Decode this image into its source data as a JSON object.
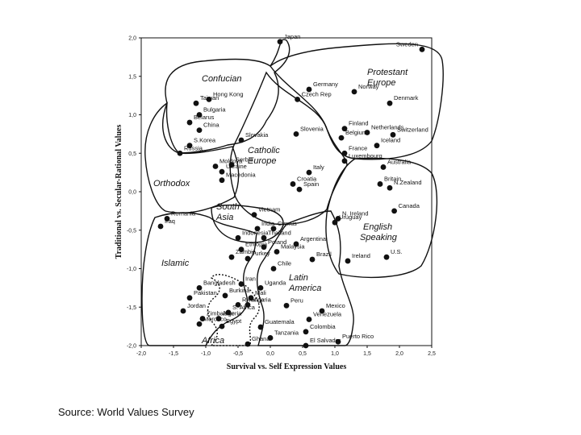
{
  "chart_data": {
    "type": "scatter",
    "xlabel": "Survival vs. Self Expression Values",
    "ylabel": "Traditional vs. Secular-Rational Values",
    "xlim": [
      -2.0,
      2.5
    ],
    "ylim": [
      -2.0,
      2.0
    ],
    "x_ticks": [
      "-2,0",
      "-1,5",
      "-1,0",
      "-0,5",
      "0,0",
      "0,5",
      "1,0",
      "1,5",
      "2,0",
      "2,5"
    ],
    "y_ticks": [
      "2,0",
      "1,5",
      "1,0",
      "0,5",
      "0,0",
      "-0,5",
      "-1,0",
      "-1,5",
      "-2,0"
    ],
    "grid": false,
    "points": [
      {
        "label": "Japan",
        "x": 0.15,
        "y": 1.95
      },
      {
        "label": "Sweden",
        "x": 2.35,
        "y": 1.85
      },
      {
        "label": "Hong Kong",
        "x": -0.95,
        "y": 1.2
      },
      {
        "label": "Taiwan",
        "x": -1.15,
        "y": 1.15
      },
      {
        "label": "Germany",
        "x": 0.6,
        "y": 1.33
      },
      {
        "label": "Norway",
        "x": 1.3,
        "y": 1.3
      },
      {
        "label": "Czech Rep",
        "x": 0.42,
        "y": 1.2
      },
      {
        "label": "Denmark",
        "x": 1.85,
        "y": 1.15
      },
      {
        "label": "Bulgaria",
        "x": -1.1,
        "y": 1.0
      },
      {
        "label": "Belarus",
        "x": -1.25,
        "y": 0.9
      },
      {
        "label": "China",
        "x": -1.1,
        "y": 0.8
      },
      {
        "label": "Slovenia",
        "x": 0.4,
        "y": 0.75
      },
      {
        "label": "Finland",
        "x": 1.15,
        "y": 0.82
      },
      {
        "label": "Netherlands",
        "x": 1.5,
        "y": 0.77
      },
      {
        "label": "Switzerland",
        "x": 1.9,
        "y": 0.74
      },
      {
        "label": "Slovakia",
        "x": -0.45,
        "y": 0.67
      },
      {
        "label": "Belgium",
        "x": 1.1,
        "y": 0.7
      },
      {
        "label": "S.Korea",
        "x": -1.25,
        "y": 0.6
      },
      {
        "label": "Iceland",
        "x": 1.65,
        "y": 0.6
      },
      {
        "label": "Russia",
        "x": -1.4,
        "y": 0.5
      },
      {
        "label": "France",
        "x": 1.15,
        "y": 0.5
      },
      {
        "label": "Luxembourg",
        "x": 1.15,
        "y": 0.4
      },
      {
        "label": "Moldova",
        "x": -0.85,
        "y": 0.33
      },
      {
        "label": "Serbia",
        "x": -0.6,
        "y": 0.35
      },
      {
        "label": "Ukraine",
        "x": -0.75,
        "y": 0.26
      },
      {
        "label": "Macedonia",
        "x": -0.75,
        "y": 0.15
      },
      {
        "label": "Italy",
        "x": 0.6,
        "y": 0.25
      },
      {
        "label": "Australia",
        "x": 1.75,
        "y": 0.32
      },
      {
        "label": "Croatia",
        "x": 0.35,
        "y": 0.1
      },
      {
        "label": "Spain",
        "x": 0.45,
        "y": 0.03
      },
      {
        "label": "Britain",
        "x": 1.7,
        "y": 0.1
      },
      {
        "label": "N.Zealand",
        "x": 1.85,
        "y": 0.05
      },
      {
        "label": "Romania",
        "x": -1.6,
        "y": -0.35
      },
      {
        "label": "Vietnam",
        "x": -0.25,
        "y": -0.3
      },
      {
        "label": "N. Ireland",
        "x": 1.05,
        "y": -0.35
      },
      {
        "label": "Canada",
        "x": 1.92,
        "y": -0.25
      },
      {
        "label": "Uruguay",
        "x": 1.0,
        "y": -0.4
      },
      {
        "label": "India",
        "x": -0.2,
        "y": -0.48
      },
      {
        "label": "Cyprus",
        "x": 0.05,
        "y": -0.48
      },
      {
        "label": "Iraq",
        "x": -1.7,
        "y": -0.45
      },
      {
        "label": "Indonesia",
        "x": -0.5,
        "y": -0.6
      },
      {
        "label": "Thailand",
        "x": -0.1,
        "y": -0.6
      },
      {
        "label": "Argentina",
        "x": 0.4,
        "y": -0.68
      },
      {
        "label": "Ethiopia",
        "x": -0.45,
        "y": -0.75
      },
      {
        "label": "Poland",
        "x": -0.1,
        "y": -0.72
      },
      {
        "label": "Malaysia",
        "x": 0.1,
        "y": -0.78
      },
      {
        "label": "Ireland",
        "x": 1.2,
        "y": -0.9
      },
      {
        "label": "U.S.",
        "x": 1.8,
        "y": -0.85
      },
      {
        "label": "Zambia",
        "x": -0.6,
        "y": -0.85
      },
      {
        "label": "Turkey",
        "x": -0.35,
        "y": -0.87
      },
      {
        "label": "Brazil",
        "x": 0.65,
        "y": -0.88
      },
      {
        "label": "Chile",
        "x": 0.05,
        "y": -1.0
      },
      {
        "label": "Bangladesh",
        "x": -1.1,
        "y": -1.25
      },
      {
        "label": "Iran",
        "x": -0.45,
        "y": -1.2
      },
      {
        "label": "Uganda",
        "x": -0.15,
        "y": -1.25
      },
      {
        "label": "Pakistan",
        "x": -1.25,
        "y": -1.38
      },
      {
        "label": "Burkina",
        "x": -0.7,
        "y": -1.35
      },
      {
        "label": "Mali",
        "x": -0.3,
        "y": -1.38
      },
      {
        "label": "Rwanda",
        "x": -0.5,
        "y": -1.47
      },
      {
        "label": "Nigeria",
        "x": -0.35,
        "y": -1.47
      },
      {
        "label": "Peru",
        "x": 0.25,
        "y": -1.48
      },
      {
        "label": "Jordan",
        "x": -1.35,
        "y": -1.55
      },
      {
        "label": "S. Africa",
        "x": -0.65,
        "y": -1.57
      },
      {
        "label": "Mexico",
        "x": 0.8,
        "y": -1.55
      },
      {
        "label": "Zimbabwe",
        "x": -1.05,
        "y": -1.65
      },
      {
        "label": "Algeria",
        "x": -0.8,
        "y": -1.65
      },
      {
        "label": "Venezuela",
        "x": 0.6,
        "y": -1.66
      },
      {
        "label": "Morocco",
        "x": -1.1,
        "y": -1.72
      },
      {
        "label": "Egypt",
        "x": -0.75,
        "y": -1.75
      },
      {
        "label": "Guatemala",
        "x": -0.15,
        "y": -1.76
      },
      {
        "label": "Colombia",
        "x": 0.55,
        "y": -1.82
      },
      {
        "label": "Tanzania",
        "x": 0.0,
        "y": -1.9
      },
      {
        "label": "Ghana",
        "x": -0.35,
        "y": -1.98
      },
      {
        "label": "Puerto Rico",
        "x": 1.05,
        "y": -1.95
      },
      {
        "label": "El Salvador",
        "x": 0.55,
        "y": -2.0
      }
    ],
    "regions": [
      "Confucian",
      "Protestant Europe",
      "Catholic Europe",
      "Orthodox",
      "South Asia",
      "English Speaking",
      "Islamic",
      "Latin America",
      "Africa"
    ]
  },
  "source_note": "Source: World Values Survey"
}
